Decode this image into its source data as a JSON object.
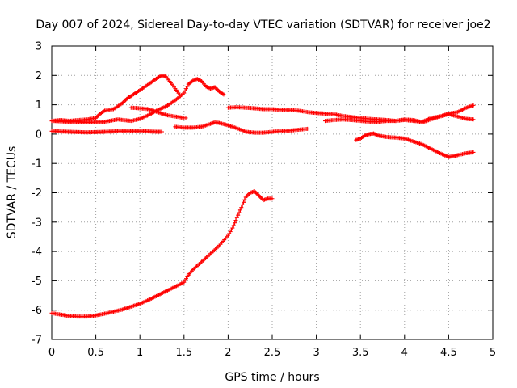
{
  "chart_data": {
    "type": "scatter",
    "title": "Day 007 of 2024, Sidereal Day-to-day VTEC variation (SDTVAR) for receiver joe2",
    "xlabel": "GPS time / hours",
    "ylabel": "SDTVAR / TECUs",
    "xlim": [
      0,
      5
    ],
    "ylim": [
      -7,
      3
    ],
    "x_ticks": [
      "0",
      "0.5",
      "1",
      "1.5",
      "2",
      "2.5",
      "3",
      "3.5",
      "4",
      "4.5",
      "5"
    ],
    "y_ticks": [
      "-7",
      "-6",
      "-5",
      "-4",
      "-3",
      "-2",
      "-1",
      "0",
      "1",
      "2",
      "3"
    ],
    "grid": true,
    "marker": "plus",
    "color": "#ff0000",
    "series": [
      {
        "name": "arc-low",
        "points": [
          [
            0.0,
            -6.1
          ],
          [
            0.1,
            -6.15
          ],
          [
            0.2,
            -6.2
          ],
          [
            0.3,
            -6.22
          ],
          [
            0.4,
            -6.22
          ],
          [
            0.5,
            -6.18
          ],
          [
            0.6,
            -6.12
          ],
          [
            0.7,
            -6.05
          ],
          [
            0.8,
            -5.98
          ],
          [
            0.9,
            -5.88
          ],
          [
            1.0,
            -5.78
          ],
          [
            1.1,
            -5.65
          ],
          [
            1.2,
            -5.5
          ],
          [
            1.3,
            -5.35
          ],
          [
            1.4,
            -5.2
          ],
          [
            1.5,
            -5.05
          ],
          [
            1.55,
            -4.8
          ],
          [
            1.6,
            -4.62
          ],
          [
            1.7,
            -4.35
          ],
          [
            1.8,
            -4.08
          ],
          [
            1.9,
            -3.8
          ],
          [
            2.0,
            -3.45
          ],
          [
            2.05,
            -3.2
          ],
          [
            2.1,
            -2.85
          ],
          [
            2.15,
            -2.5
          ],
          [
            2.2,
            -2.15
          ],
          [
            2.25,
            -2.0
          ],
          [
            2.3,
            -1.95
          ],
          [
            2.35,
            -2.1
          ],
          [
            2.4,
            -2.25
          ],
          [
            2.45,
            -2.2
          ],
          [
            2.5,
            -2.2
          ]
        ]
      },
      {
        "name": "arc-hump",
        "points": [
          [
            0.0,
            0.45
          ],
          [
            0.1,
            0.48
          ],
          [
            0.2,
            0.45
          ],
          [
            0.3,
            0.48
          ],
          [
            0.4,
            0.5
          ],
          [
            0.5,
            0.55
          ],
          [
            0.55,
            0.7
          ],
          [
            0.6,
            0.8
          ],
          [
            0.7,
            0.85
          ],
          [
            0.8,
            1.05
          ],
          [
            0.85,
            1.2
          ],
          [
            0.9,
            1.3
          ],
          [
            1.0,
            1.5
          ],
          [
            1.1,
            1.7
          ],
          [
            1.2,
            1.92
          ],
          [
            1.25,
            2.0
          ],
          [
            1.3,
            1.95
          ],
          [
            1.35,
            1.75
          ],
          [
            1.4,
            1.55
          ],
          [
            1.45,
            1.35
          ]
        ]
      },
      {
        "name": "arc-mid",
        "points": [
          [
            0.0,
            0.45
          ],
          [
            0.2,
            0.42
          ],
          [
            0.4,
            0.4
          ],
          [
            0.6,
            0.42
          ],
          [
            0.75,
            0.5
          ],
          [
            0.9,
            0.45
          ],
          [
            1.0,
            0.52
          ],
          [
            1.1,
            0.65
          ],
          [
            1.2,
            0.82
          ],
          [
            1.3,
            0.95
          ],
          [
            1.4,
            1.15
          ],
          [
            1.5,
            1.4
          ],
          [
            1.55,
            1.7
          ],
          [
            1.6,
            1.82
          ],
          [
            1.65,
            1.88
          ],
          [
            1.7,
            1.8
          ],
          [
            1.75,
            1.62
          ],
          [
            1.8,
            1.55
          ],
          [
            1.85,
            1.6
          ],
          [
            1.9,
            1.45
          ],
          [
            1.95,
            1.35
          ]
        ]
      },
      {
        "name": "arc-flat",
        "points": [
          [
            0.0,
            0.1
          ],
          [
            0.2,
            0.08
          ],
          [
            0.4,
            0.06
          ],
          [
            0.6,
            0.08
          ],
          [
            0.8,
            0.1
          ],
          [
            1.0,
            0.1
          ],
          [
            1.2,
            0.08
          ],
          [
            1.25,
            0.08
          ]
        ]
      },
      {
        "name": "arc-short",
        "points": [
          [
            0.9,
            0.9
          ],
          [
            1.0,
            0.88
          ],
          [
            1.1,
            0.85
          ],
          [
            1.2,
            0.75
          ],
          [
            1.3,
            0.65
          ],
          [
            1.4,
            0.6
          ],
          [
            1.5,
            0.55
          ],
          [
            1.52,
            0.55
          ]
        ]
      },
      {
        "name": "arc-middle-low",
        "points": [
          [
            1.4,
            0.25
          ],
          [
            1.5,
            0.22
          ],
          [
            1.6,
            0.22
          ],
          [
            1.7,
            0.25
          ],
          [
            1.8,
            0.35
          ],
          [
            1.85,
            0.4
          ],
          [
            1.9,
            0.38
          ],
          [
            2.0,
            0.3
          ],
          [
            2.1,
            0.2
          ],
          [
            2.2,
            0.08
          ],
          [
            2.3,
            0.05
          ],
          [
            2.4,
            0.05
          ],
          [
            2.5,
            0.08
          ],
          [
            2.6,
            0.1
          ],
          [
            2.7,
            0.12
          ],
          [
            2.8,
            0.15
          ],
          [
            2.9,
            0.18
          ]
        ]
      },
      {
        "name": "arc-long",
        "points": [
          [
            2.0,
            0.9
          ],
          [
            2.1,
            0.92
          ],
          [
            2.2,
            0.9
          ],
          [
            2.3,
            0.88
          ],
          [
            2.4,
            0.85
          ],
          [
            2.5,
            0.85
          ],
          [
            2.6,
            0.83
          ],
          [
            2.7,
            0.82
          ],
          [
            2.8,
            0.8
          ],
          [
            2.9,
            0.75
          ],
          [
            3.0,
            0.72
          ],
          [
            3.1,
            0.7
          ],
          [
            3.2,
            0.68
          ],
          [
            3.3,
            0.62
          ],
          [
            3.4,
            0.58
          ],
          [
            3.5,
            0.55
          ],
          [
            3.6,
            0.52
          ],
          [
            3.7,
            0.5
          ],
          [
            3.8,
            0.48
          ],
          [
            3.9,
            0.45
          ],
          [
            4.0,
            0.5
          ],
          [
            4.1,
            0.48
          ],
          [
            4.2,
            0.4
          ],
          [
            4.3,
            0.5
          ],
          [
            4.4,
            0.6
          ],
          [
            4.5,
            0.7
          ],
          [
            4.6,
            0.75
          ],
          [
            4.7,
            0.9
          ],
          [
            4.78,
            0.98
          ]
        ]
      },
      {
        "name": "arc-right-mid",
        "points": [
          [
            3.1,
            0.45
          ],
          [
            3.2,
            0.48
          ],
          [
            3.3,
            0.5
          ],
          [
            3.4,
            0.48
          ],
          [
            3.5,
            0.45
          ],
          [
            3.6,
            0.42
          ],
          [
            3.7,
            0.42
          ],
          [
            3.8,
            0.45
          ],
          [
            3.9,
            0.45
          ],
          [
            4.0,
            0.48
          ],
          [
            4.1,
            0.45
          ],
          [
            4.2,
            0.42
          ],
          [
            4.3,
            0.55
          ],
          [
            4.4,
            0.6
          ],
          [
            4.5,
            0.68
          ],
          [
            4.6,
            0.6
          ],
          [
            4.7,
            0.52
          ],
          [
            4.78,
            0.5
          ]
        ]
      },
      {
        "name": "arc-right-low",
        "points": [
          [
            3.45,
            -0.2
          ],
          [
            3.5,
            -0.15
          ],
          [
            3.55,
            -0.05
          ],
          [
            3.6,
            0.0
          ],
          [
            3.65,
            0.02
          ],
          [
            3.7,
            -0.05
          ],
          [
            3.8,
            -0.1
          ],
          [
            3.9,
            -0.12
          ],
          [
            4.0,
            -0.15
          ],
          [
            4.1,
            -0.25
          ],
          [
            4.2,
            -0.35
          ],
          [
            4.3,
            -0.5
          ],
          [
            4.4,
            -0.65
          ],
          [
            4.5,
            -0.78
          ],
          [
            4.55,
            -0.75
          ],
          [
            4.6,
            -0.72
          ],
          [
            4.7,
            -0.65
          ],
          [
            4.78,
            -0.62
          ]
        ]
      }
    ]
  }
}
